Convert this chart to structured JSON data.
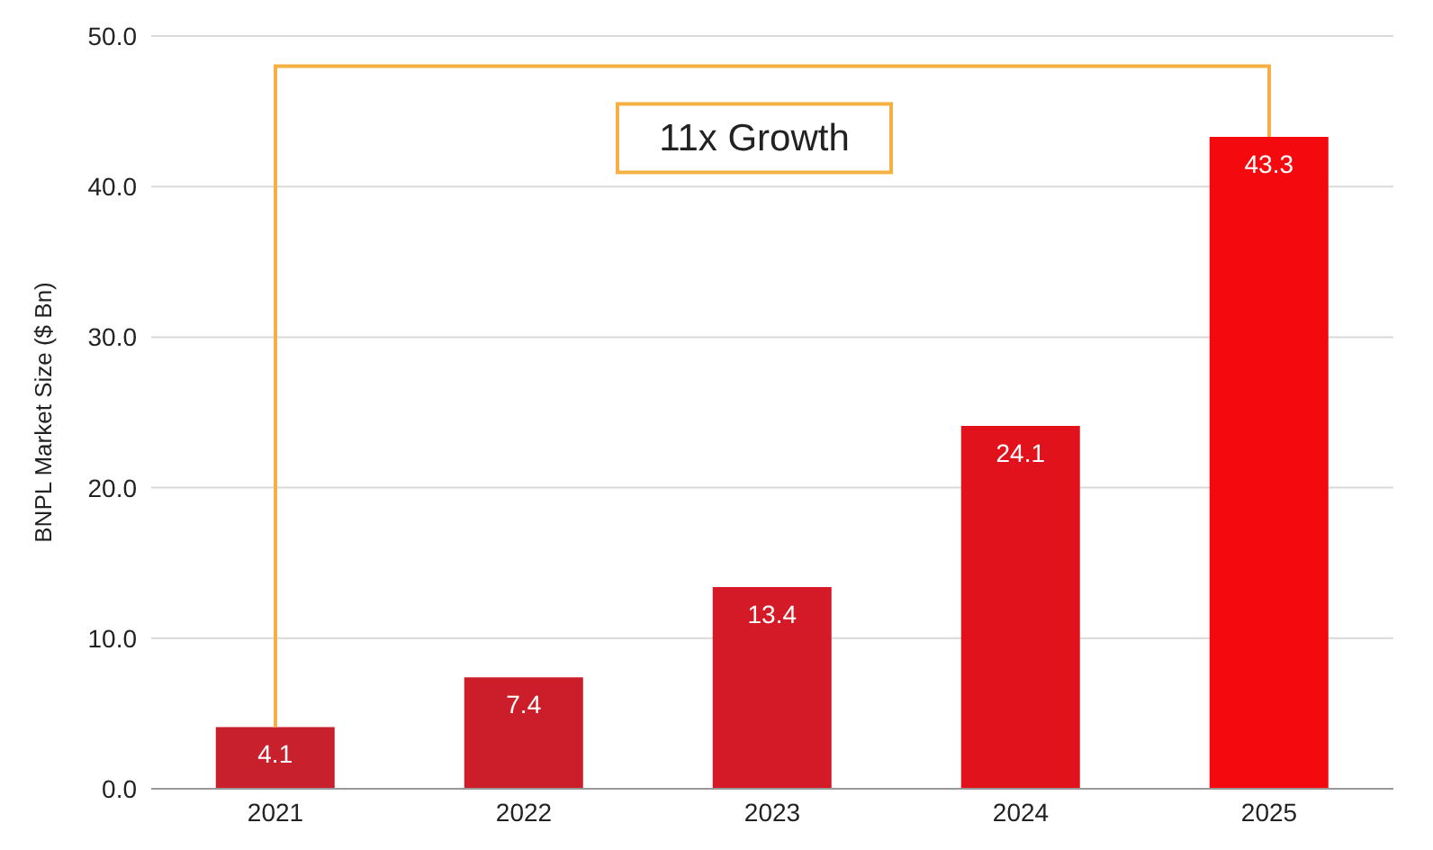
{
  "chart_data": {
    "type": "bar",
    "ylabel": "BNPL Market Size ($ Bn)",
    "categories": [
      "2021",
      "2022",
      "2023",
      "2024",
      "2025"
    ],
    "values": [
      4.1,
      7.4,
      13.4,
      24.1,
      43.3
    ],
    "colors": [
      "#c8202c",
      "#cc1e2a",
      "#d41a26",
      "#e2121c",
      "#f40a0e"
    ],
    "ylim": [
      0,
      50
    ],
    "yticks": [
      {
        "value": 0,
        "label": "0.0"
      },
      {
        "value": 10,
        "label": "10.0"
      },
      {
        "value": 20,
        "label": "20.0"
      },
      {
        "value": 30,
        "label": "30.0"
      },
      {
        "value": 40,
        "label": "40.0"
      },
      {
        "value": 50,
        "label": "50.0"
      }
    ],
    "grid": "y",
    "data_labels": true,
    "annotations": [
      "11x Growth"
    ]
  }
}
